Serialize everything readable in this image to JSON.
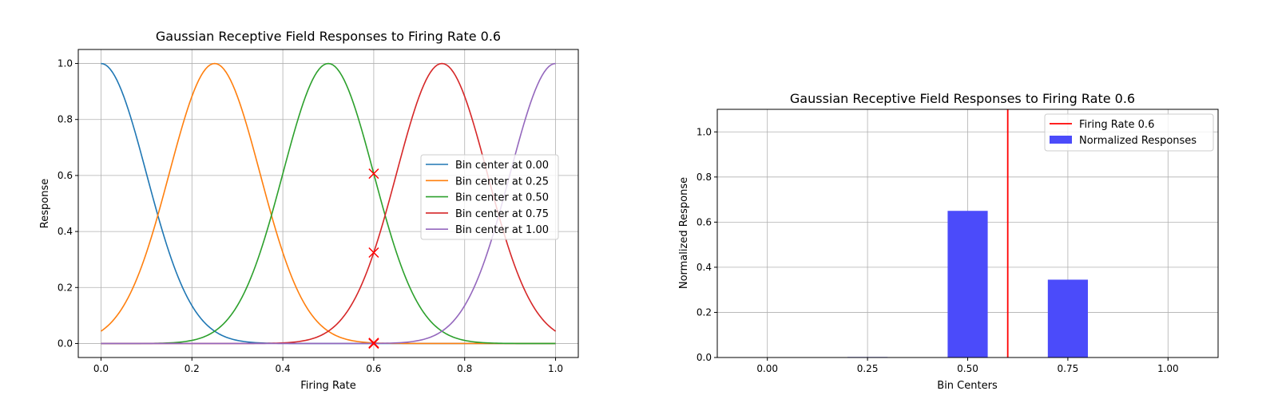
{
  "chart_data": [
    {
      "type": "line",
      "title": "Gaussian Receptive Field Responses to Firing Rate 0.6",
      "xlabel": "Firing Rate",
      "ylabel": "Response",
      "xlim": [
        -0.05,
        1.05
      ],
      "ylim": [
        -0.05,
        1.05
      ],
      "xticks": [
        "0.0",
        "0.2",
        "0.4",
        "0.6",
        "0.8",
        "1.0"
      ],
      "yticks": [
        "0.0",
        "0.2",
        "0.4",
        "0.6",
        "0.8",
        "1.0"
      ],
      "grid": true,
      "sigma": 0.1,
      "series": [
        {
          "name": "Bin center at 0.00",
          "center": 0.0,
          "color": "#1f77b4"
        },
        {
          "name": "Bin center at 0.25",
          "center": 0.25,
          "color": "#ff7f0e"
        },
        {
          "name": "Bin center at 0.50",
          "center": 0.5,
          "color": "#2ca02c"
        },
        {
          "name": "Bin center at 0.75",
          "center": 0.75,
          "color": "#d62728"
        },
        {
          "name": "Bin center at 1.00",
          "center": 1.0,
          "color": "#9467bd"
        }
      ],
      "markers": {
        "x": 0.6,
        "values": [
          0.0,
          0.0022,
          0.6065,
          0.3247,
          0.0
        ],
        "color": "#ff0000",
        "symbol": "x"
      },
      "legend": "center-right"
    },
    {
      "type": "bar",
      "title": "Gaussian Receptive Field Responses to Firing Rate 0.6",
      "xlabel": "Bin Centers",
      "ylabel": "Normalized Response",
      "categories": [
        0.0,
        0.25,
        0.5,
        0.75,
        1.0
      ],
      "values": [
        0.0,
        0.0023,
        0.65,
        0.345,
        0.0
      ],
      "bar_width": 0.1,
      "xlim": [
        -0.125,
        1.125
      ],
      "ylim": [
        0,
        1.1
      ],
      "xticks": [
        "0.00",
        "0.25",
        "0.50",
        "0.75",
        "1.00"
      ],
      "yticks": [
        "0.0",
        "0.2",
        "0.4",
        "0.6",
        "0.8",
        "1.0"
      ],
      "grid": true,
      "bar_color": "#4b4bfa",
      "vline": {
        "x": 0.6,
        "label": "Firing Rate 0.6",
        "color": "#ff0000"
      },
      "bar_label": "Normalized Responses",
      "legend": "top-right"
    }
  ]
}
